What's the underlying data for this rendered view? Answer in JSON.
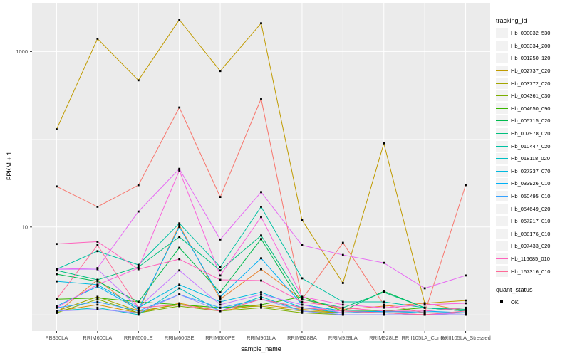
{
  "chart_data": {
    "type": "line",
    "title": "",
    "xlabel": "sample_name",
    "ylabel": "FPKM + 1",
    "y_scale": "log10",
    "ylim": [
      0.95,
      3500
    ],
    "grid": true,
    "panel_bg": "#EBEBEB",
    "gridline_color": "#FFFFFF",
    "tick_label_color": "#4D4D4D",
    "point_color": "#000000",
    "legend_position": "right",
    "y_ticks": [
      {
        "label": "1000",
        "value": 1000
      },
      {
        "label": "10",
        "value": 10
      }
    ],
    "y_minor_gridlines": [
      100,
      1
    ],
    "categories": [
      "PB350LA",
      "RRIM600LA",
      "RRIM600LE",
      "RRIM600SE",
      "RRIM600PE",
      "RRIM901LA",
      "RRIM928BA",
      "RRIM928LA",
      "RRIM928LE",
      "RRII105LA_Control",
      "RRII105LA_Stressed"
    ],
    "legend_title": "tracking_id",
    "legend2_title": "quant_status",
    "legend2_items": [
      {
        "label": "OK",
        "marker": "black-square"
      }
    ],
    "series": [
      {
        "name": "Hb_000032_530",
        "color": "#F8766D",
        "values": [
          29,
          17,
          30,
          230,
          22,
          290,
          1.5,
          6.6,
          1.3,
          1.05,
          30
        ]
      },
      {
        "name": "Hb_000334_200",
        "color": "#EA8331",
        "values": [
          1.05,
          2.5,
          1.1,
          10.5,
          1.5,
          3.3,
          1.5,
          1.15,
          1.25,
          1.35,
          1.1
        ]
      },
      {
        "name": "Hb_001250_120",
        "color": "#D89000",
        "values": [
          1.1,
          1.3,
          1.05,
          1.35,
          1.1,
          1.3,
          1.15,
          1.05,
          1.05,
          1.05,
          1.05
        ]
      },
      {
        "name": "Hb_002737_020",
        "color": "#C09B00",
        "values": [
          130,
          1400,
          470,
          2300,
          600,
          2100,
          12,
          2.3,
          90,
          1.35,
          1.45
        ]
      },
      {
        "name": "Hb_003772_020",
        "color": "#A3A500",
        "values": [
          1.1,
          1.6,
          1.1,
          1.3,
          1.2,
          1.25,
          1.1,
          1.05,
          1.05,
          1.0,
          1.05
        ]
      },
      {
        "name": "Hb_004361_030",
        "color": "#7CAE00",
        "values": [
          1.05,
          1.5,
          1.05,
          1.25,
          1.1,
          1.2,
          1.05,
          1.0,
          1.0,
          1.0,
          1.0
        ]
      },
      {
        "name": "Hb_004650_090",
        "color": "#39B600",
        "values": [
          1.5,
          1.55,
          1.4,
          1.3,
          1.2,
          1.3,
          1.6,
          1.1,
          1.1,
          1.2,
          1.1
        ]
      },
      {
        "name": "Hb_005715_020",
        "color": "#00BB4E",
        "values": [
          2.9,
          2.4,
          1.4,
          5.8,
          1.8,
          7.3,
          1.3,
          1.1,
          1.85,
          1.2,
          1.1
        ]
      },
      {
        "name": "Hb_007978_020",
        "color": "#00BF7D",
        "values": [
          3.2,
          2.5,
          3.5,
          7.7,
          3.2,
          8.0,
          1.5,
          1.2,
          1.8,
          1.2,
          1.15
        ]
      },
      {
        "name": "Hb_010447_020",
        "color": "#00C1A3",
        "values": [
          3.3,
          5.3,
          3.7,
          11,
          3.5,
          17,
          2.6,
          1.4,
          1.4,
          1.2,
          1.1
        ]
      },
      {
        "name": "Hb_018118_020",
        "color": "#00BFC4",
        "values": [
          1.1,
          1.2,
          1.0,
          2.0,
          1.1,
          1.6,
          1.1,
          1.0,
          1.0,
          1.0,
          1.0
        ]
      },
      {
        "name": "Hb_027337_070",
        "color": "#00BAE0",
        "values": [
          2.4,
          2.2,
          1.2,
          2.2,
          1.4,
          1.8,
          1.2,
          1.05,
          1.1,
          1.05,
          1.05
        ]
      },
      {
        "name": "Hb_033926_010",
        "color": "#00B0F6",
        "values": [
          1.25,
          2.1,
          1.15,
          10,
          1.6,
          4.4,
          1.3,
          1.1,
          1.08,
          1.1,
          1.05
        ]
      },
      {
        "name": "Hb_050495_010",
        "color": "#35A2FF",
        "values": [
          1.2,
          1.4,
          1.1,
          1.7,
          1.2,
          1.5,
          1.2,
          1.1,
          1.05,
          1.05,
          1.05
        ]
      },
      {
        "name": "Hb_054649_020",
        "color": "#9590FF",
        "values": [
          1.1,
          1.15,
          1.05,
          1.7,
          1.1,
          1.5,
          1.1,
          1.0,
          1.0,
          1.0,
          1.0
        ]
      },
      {
        "name": "Hb_057217_010",
        "color": "#C77CFF",
        "values": [
          3.3,
          3.3,
          1.2,
          3.2,
          1.3,
          1.7,
          1.3,
          1.05,
          1.05,
          1.0,
          1.05
        ]
      },
      {
        "name": "Hb_088176_010",
        "color": "#E76BF3",
        "values": [
          3.3,
          3.4,
          15,
          46,
          7.2,
          25,
          6.2,
          4.8,
          3.9,
          2.0,
          2.8
        ]
      },
      {
        "name": "Hb_097433_020",
        "color": "#FA62DB",
        "values": [
          1.2,
          2.2,
          3.4,
          44,
          2.8,
          13,
          1.6,
          1.3,
          1.2,
          1.3,
          1.35
        ]
      },
      {
        "name": "Hb_116685_010",
        "color": "#FF62BC",
        "values": [
          6.4,
          6.8,
          3.3,
          4.3,
          2.5,
          2.45,
          1.4,
          1.2,
          1.1,
          1.1,
          1.2
        ]
      },
      {
        "name": "Hb_167316_010",
        "color": "#FF6A98",
        "values": [
          1.5,
          6.2,
          1.2,
          1.3,
          1.1,
          1.5,
          1.2,
          1.1,
          1.05,
          1.0,
          1.1
        ]
      }
    ]
  }
}
